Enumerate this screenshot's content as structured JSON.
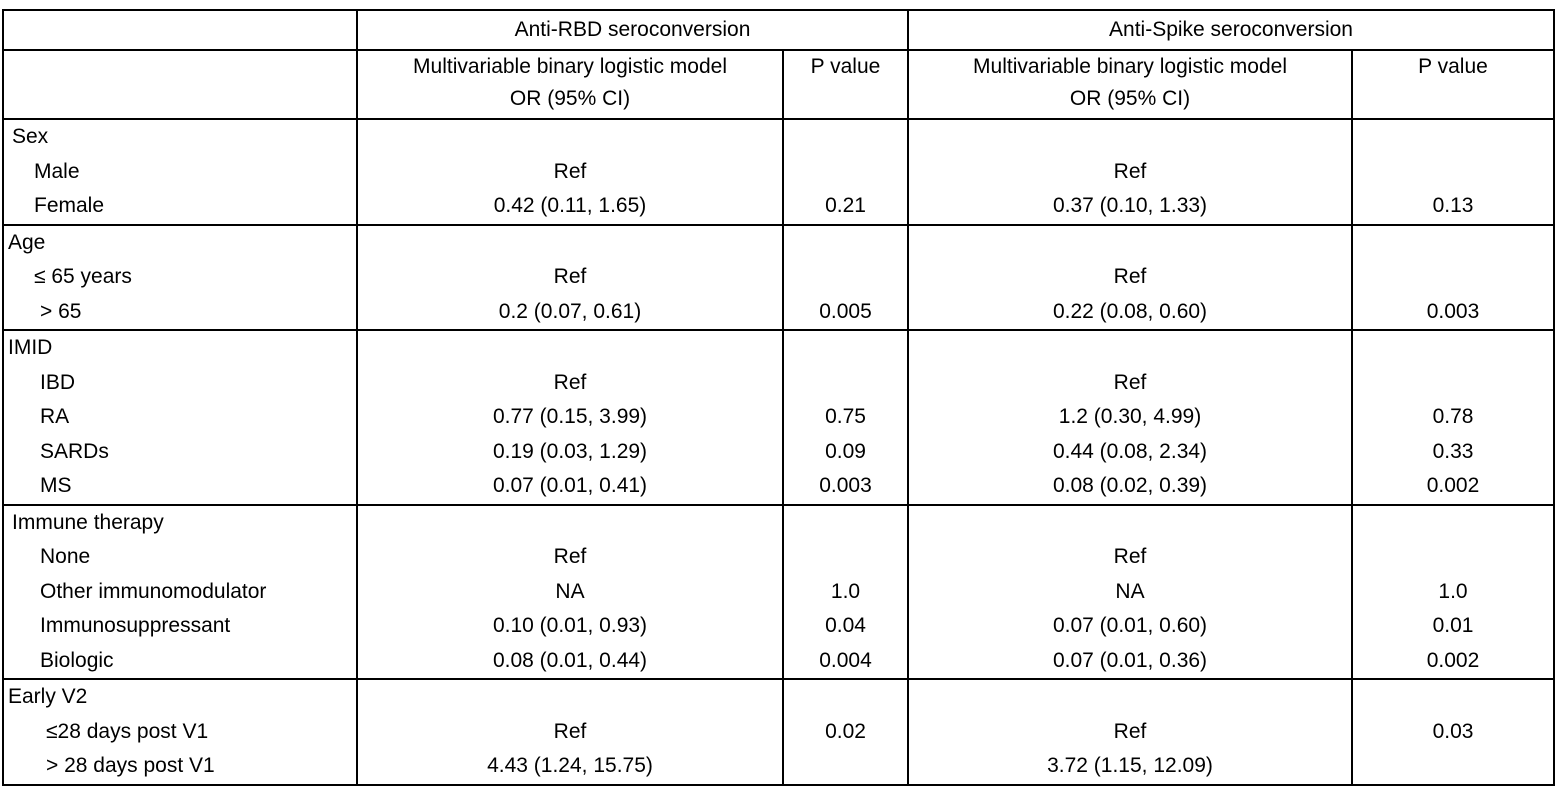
{
  "header": {
    "group1": "Anti-RBD seroconversion",
    "group2": "Anti-Spike seroconversion",
    "model_line1": "Multivariable binary logistic model",
    "model_line2": "OR (95% CI)",
    "pvalue": "P value"
  },
  "sections": {
    "sex": {
      "title": "Sex",
      "rows": [
        {
          "label": "Male",
          "rbd_or": "Ref",
          "rbd_p": "",
          "spike_or": "Ref",
          "spike_p": ""
        },
        {
          "label": "Female",
          "rbd_or": "0.42 (0.11, 1.65)",
          "rbd_p": "0.21",
          "spike_or": "0.37 (0.10, 1.33)",
          "spike_p": "0.13"
        }
      ]
    },
    "age": {
      "title": "Age",
      "rows": [
        {
          "label": "≤ 65 years",
          "rbd_or": "Ref",
          "rbd_p": "",
          "spike_or": "Ref",
          "spike_p": ""
        },
        {
          "label": "> 65",
          "rbd_or": "0.2 (0.07, 0.61)",
          "rbd_p": "0.005",
          "spike_or": "0.22 (0.08, 0.60)",
          "spike_p": "0.003"
        }
      ]
    },
    "imid": {
      "title": "IMID",
      "rows": [
        {
          "label": "IBD",
          "rbd_or": "Ref",
          "rbd_p": "",
          "spike_or": "Ref",
          "spike_p": ""
        },
        {
          "label": "RA",
          "rbd_or": "0.77 (0.15, 3.99)",
          "rbd_p": "0.75",
          "spike_or": "1.2 (0.30, 4.99)",
          "spike_p": "0.78"
        },
        {
          "label": "SARDs",
          "rbd_or": "0.19 (0.03, 1.29)",
          "rbd_p": "0.09",
          "spike_or": "0.44 (0.08, 2.34)",
          "spike_p": "0.33"
        },
        {
          "label": "MS",
          "rbd_or": "0.07 (0.01, 0.41)",
          "rbd_p": "0.003",
          "spike_or": "0.08 (0.02, 0.39)",
          "spike_p": "0.002"
        }
      ]
    },
    "therapy": {
      "title": "Immune therapy",
      "rows": [
        {
          "label": "None",
          "rbd_or": "Ref",
          "rbd_p": "",
          "spike_or": "Ref",
          "spike_p": ""
        },
        {
          "label": "Other immunomodulator",
          "rbd_or": "NA",
          "rbd_p": "1.0",
          "spike_or": "NA",
          "spike_p": "1.0"
        },
        {
          "label": "Immunosuppressant",
          "rbd_or": "0.10 (0.01, 0.93)",
          "rbd_p": "0.04",
          "spike_or": "0.07 (0.01, 0.60)",
          "spike_p": "0.01"
        },
        {
          "label": "Biologic",
          "rbd_or": "0.08 (0.01, 0.44)",
          "rbd_p": "0.004",
          "spike_or": "0.07 (0.01, 0.36)",
          "spike_p": "0.002"
        }
      ]
    },
    "early": {
      "title": "Early V2",
      "rows": [
        {
          "label": "≤28 days post V1",
          "rbd_or": "Ref",
          "spike_or": "Ref"
        },
        {
          "label": "> 28 days post V1",
          "rbd_or": "4.43 (1.24, 15.75)",
          "spike_or": "3.72 (1.15, 12.09)"
        }
      ],
      "rbd_p": "0.02",
      "spike_p": "0.03"
    }
  }
}
